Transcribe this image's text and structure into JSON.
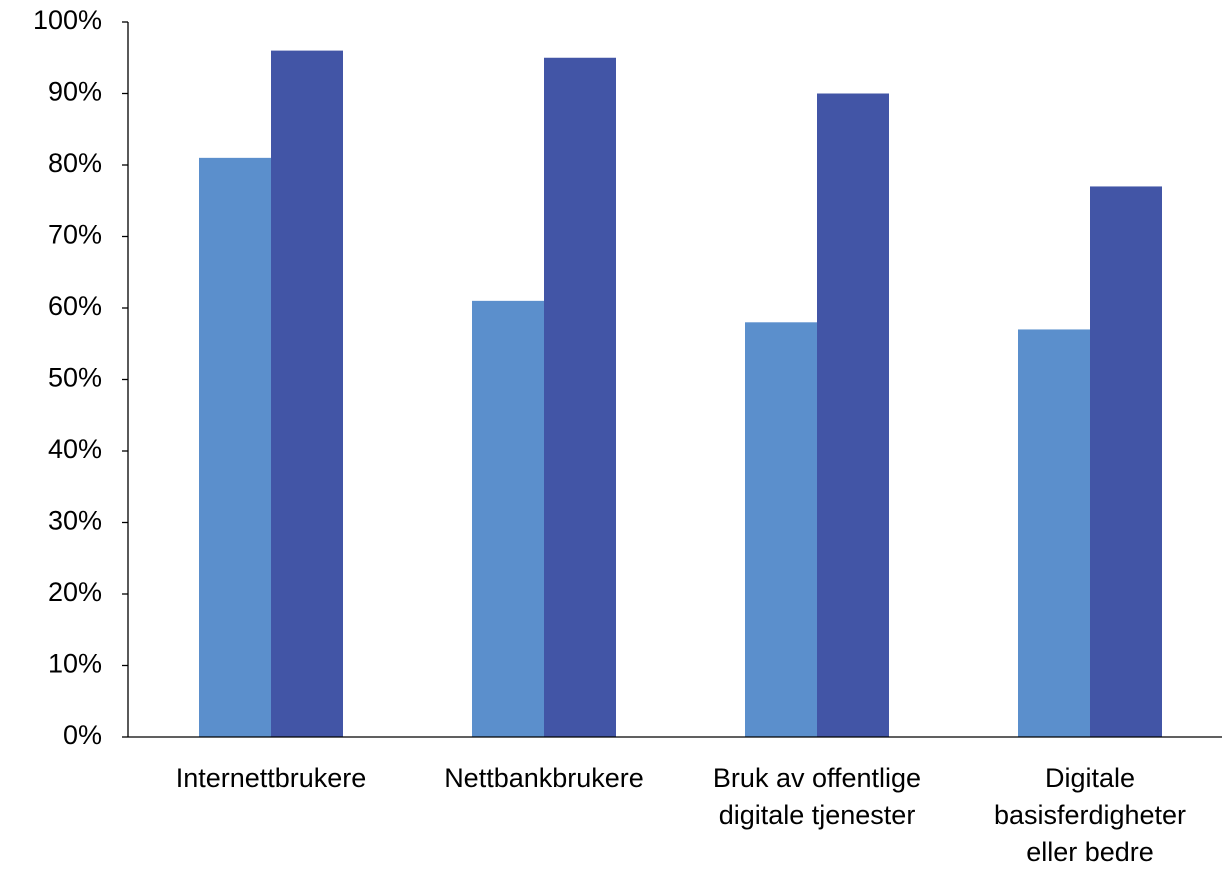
{
  "chart_data": {
    "type": "bar",
    "categories": [
      "Internettbrukere",
      "Nettbankbrukere",
      "Bruk av offentlige digitale tjenester",
      "Digitale basisferdigheter eller bedre"
    ],
    "series": [
      {
        "color": "#5b8fcc",
        "values": [
          81,
          61,
          58,
          57
        ]
      },
      {
        "color": "#4255a6",
        "values": [
          96,
          95,
          90,
          77
        ]
      }
    ],
    "ylim": [
      0,
      100
    ],
    "yticks": [
      {
        "value": 0,
        "label": "0%"
      },
      {
        "value": 10,
        "label": "10%"
      },
      {
        "value": 20,
        "label": "20%"
      },
      {
        "value": 30,
        "label": "30%"
      },
      {
        "value": 40,
        "label": "40%"
      },
      {
        "value": 50,
        "label": "50%"
      },
      {
        "value": 60,
        "label": "60%"
      },
      {
        "value": 70,
        "label": "70%"
      },
      {
        "value": 80,
        "label": "80%"
      },
      {
        "value": 90,
        "label": "90%"
      },
      {
        "value": 100,
        "label": "100%"
      }
    ],
    "grid": false
  }
}
